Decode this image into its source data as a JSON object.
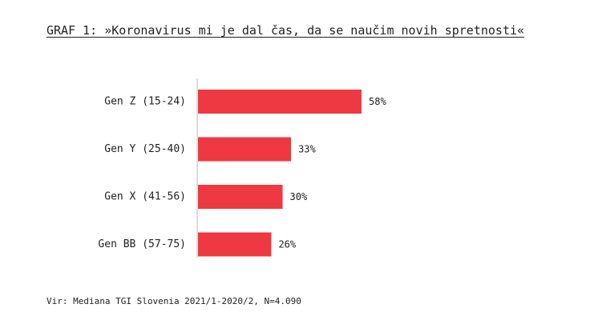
{
  "chart_data": {
    "type": "bar",
    "orientation": "horizontal",
    "title": "GRAF 1: »Koronavirus mi je dal čas, da se naučim novih spretnosti«",
    "categories": [
      "Gen Z (15-24)",
      "Gen Y (25-40)",
      "Gen X (41-56)",
      "Gen BB (57-75)"
    ],
    "values": [
      58,
      33,
      30,
      26
    ],
    "value_labels": [
      "58%",
      "33%",
      "30%",
      "26%"
    ],
    "unit": "%",
    "xlim": [
      0,
      58
    ],
    "grid": false,
    "legend": "none",
    "bar_color": "#ee3842",
    "source": "Vir: Mediana TGI Slovenia 2021/1-2020/2, N=4.090"
  }
}
